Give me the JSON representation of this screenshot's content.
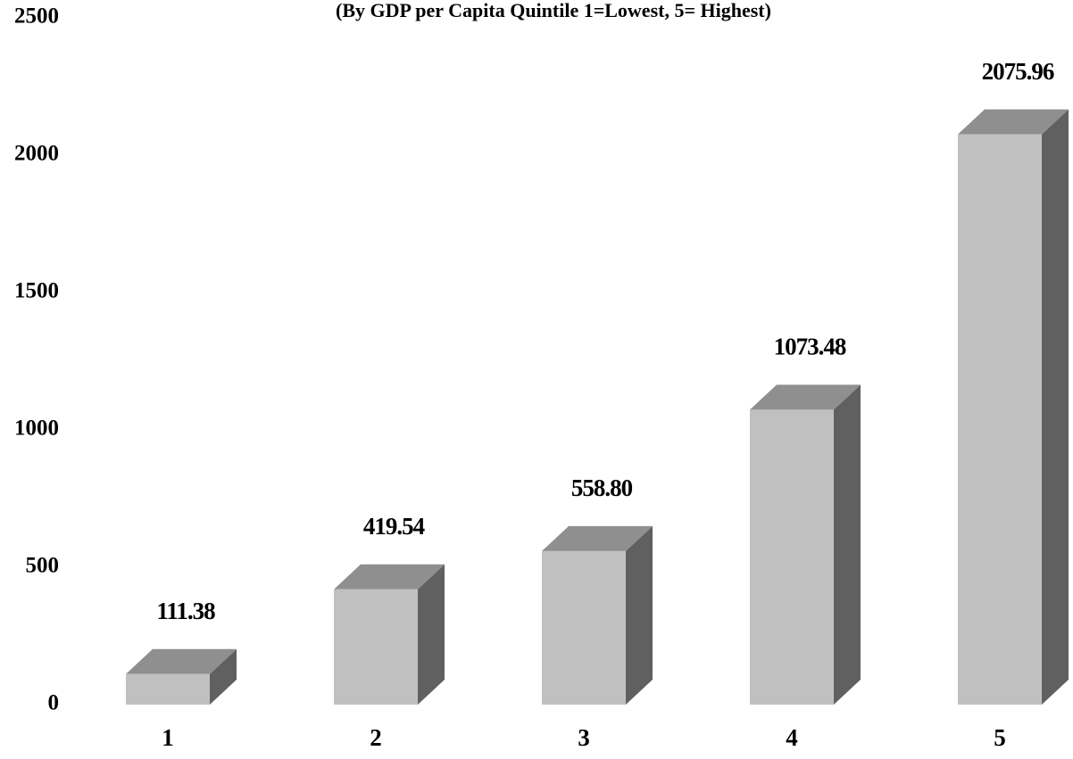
{
  "chart_data": {
    "type": "bar3d",
    "subtitle": "(By GDP per Capita Quintile 1=Lowest, 5= Highest)",
    "categories": [
      "1",
      "2",
      "3",
      "4",
      "5"
    ],
    "values": [
      111.38,
      419.54,
      558.8,
      1073.48,
      2075.96
    ],
    "value_labels": [
      "111.38",
      "419.54",
      "558.80",
      "1073.48",
      "2075.96"
    ],
    "color": "#c0c0c0",
    "ylim": [
      0,
      2500
    ],
    "yticks": [
      0,
      500,
      1000,
      1500,
      2000,
      2500
    ],
    "grid": false
  }
}
